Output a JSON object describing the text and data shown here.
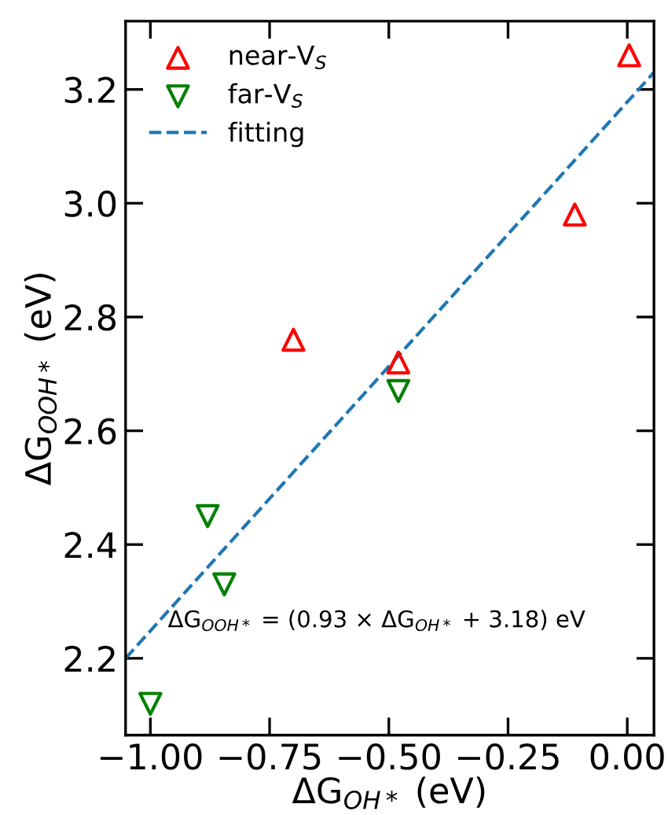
{
  "chart_data": {
    "type": "scatter",
    "xlabel": "ΔG$_{OH*}$ (eV)",
    "ylabel": "ΔG$_{OOH*}$ (eV)",
    "series": [
      {
        "name": "near-V$_{S}$",
        "color": "#ff0000",
        "marker": "triangle",
        "x": [
          0.004,
          -0.11,
          -0.7,
          -0.48
        ],
        "values": [
          3.26,
          2.98,
          2.76,
          2.72
        ]
      },
      {
        "name": "far-V$_{S}$",
        "color": "#008000",
        "marker": "triangle_down",
        "x": [
          -0.48,
          -0.88,
          -0.845,
          -1.0
        ],
        "values": [
          2.67,
          2.45,
          2.33,
          2.12
        ]
      },
      {
        "name": "fitting",
        "type": "line",
        "color": "#1f77b4",
        "marker": "none",
        "line_style": "dashed",
        "x": [
          -1.052,
          0.056
        ],
        "values": [
          2.2,
          3.23
        ]
      }
    ],
    "annotations": [
      "ΔG$_{OOH*}$ = (0.93 × ΔG$_{OH*}$ + 3.18) eV"
    ],
    "xlim": [
      -1.052,
      0.056
    ],
    "ylim": [
      2.065,
      3.32
    ],
    "xticks": [
      {
        "value": -1.0,
        "label": "−1.00"
      },
      {
        "value": -0.75,
        "label": "−0.75"
      },
      {
        "value": -0.5,
        "label": "−0.50"
      },
      {
        "value": -0.25,
        "label": "−0.25"
      },
      {
        "value": 0.0,
        "label": "0.00"
      }
    ],
    "yticks": [
      {
        "value": 2.2,
        "label": "2.2"
      },
      {
        "value": 2.4,
        "label": "2.4"
      },
      {
        "value": 2.6,
        "label": "2.6"
      },
      {
        "value": 2.8,
        "label": "2.8"
      },
      {
        "value": 3.0,
        "label": "3.0"
      },
      {
        "value": 3.2,
        "label": "3.2"
      }
    ],
    "legend": "top left",
    "grid": false
  }
}
